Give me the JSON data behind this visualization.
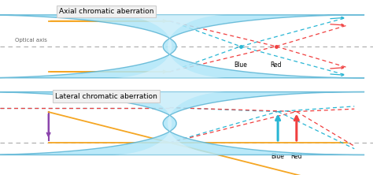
{
  "bg_color": "#ffffff",
  "panel_bg": "#ffffff",
  "title1": "Axial chromatic aberration",
  "title2": "Lateral chromatic aberration",
  "optical_axis_label": "Optical axis",
  "blue_label": "Blue",
  "red_label": "Red",
  "blue_color": "#29b6d4",
  "red_color": "#f04040",
  "orange_color": "#f5a623",
  "purple_color": "#8b44ac",
  "lens_color_light": "#aee6f8",
  "lens_color_mid": "#5cc8f0",
  "axis_color": "#aaaaaa",
  "title_box_bg": "#f0f0f0",
  "title_box_edge": "#cccccc"
}
